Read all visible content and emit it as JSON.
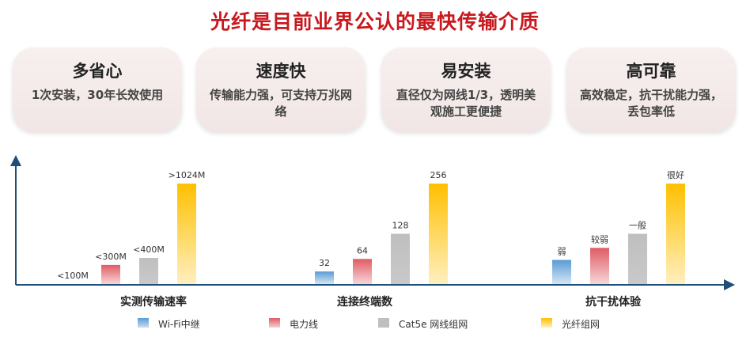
{
  "title": "光纤是目前业界公认的最快传输介质",
  "cards": [
    {
      "title": "多省心",
      "desc": "1次安装，30年长效使用"
    },
    {
      "title": "速度快",
      "desc": "传输能力强，可支持万兆网络"
    },
    {
      "title": "易安装",
      "desc": "直径仅为网线1/3，透明美观施工更便捷"
    },
    {
      "title": "高可靠",
      "desc": "高效稳定，抗干扰能力强，丢包率低"
    }
  ],
  "chart_data": {
    "type": "bar",
    "categories": [
      "实测传输速率",
      "连接终端数",
      "抗干扰体验"
    ],
    "series": [
      {
        "name": "Wi-Fi中继",
        "color": "#5b9bd5"
      },
      {
        "name": "电力线",
        "color": "#e05c65"
      },
      {
        "name": "Cat5e 网线组网",
        "color": "#bfbfbf"
      },
      {
        "name": "光纤组网",
        "color": "#ffc000"
      }
    ],
    "groups": [
      {
        "category": "实测传输速率",
        "scale": "relative",
        "bars": [
          {
            "level": 0,
            "label": "<100M"
          },
          {
            "level": 0.19,
            "label": "<300M"
          },
          {
            "level": 0.26,
            "label": "<400M"
          },
          {
            "level": 1.0,
            "label": ">1024M"
          }
        ]
      },
      {
        "category": "连接终端数",
        "scale": "value",
        "bars": [
          {
            "value": 32,
            "label": "32"
          },
          {
            "value": 64,
            "label": "64"
          },
          {
            "value": 128,
            "label": "128"
          },
          {
            "value": 256,
            "label": "256"
          }
        ]
      },
      {
        "category": "抗干扰体验",
        "scale": "relative",
        "bars": [
          {
            "level": 0.24,
            "label": "弱"
          },
          {
            "level": 0.36,
            "label": "较弱"
          },
          {
            "level": 0.5,
            "label": "一般"
          },
          {
            "level": 1.0,
            "label": "很好"
          }
        ]
      }
    ],
    "xlabel": "",
    "ylabel": "",
    "grid": false,
    "legend": "bottom"
  }
}
